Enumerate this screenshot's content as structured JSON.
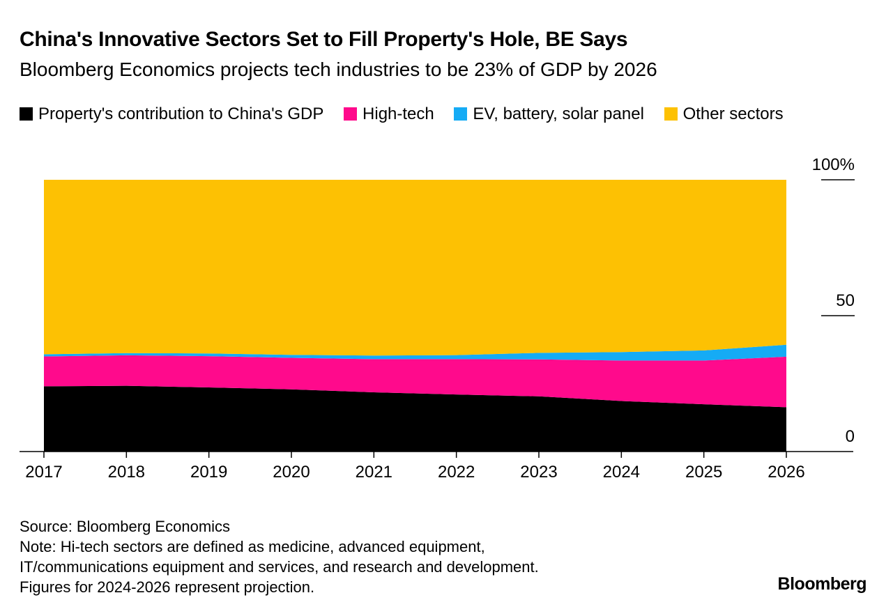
{
  "title": "China's Innovative Sectors Set to Fill Property's Hole, BE Says",
  "subtitle": "Bloomberg Economics projects tech industries to be 23% of GDP by 2026",
  "source": "Source: Bloomberg Economics",
  "notes": [
    "Note: Hi-tech sectors are defined as medicine, advanced equipment,",
    "IT/communications equipment and services, and research and development.",
    "Figures for 2024-2026 represent projection."
  ],
  "brand": "Bloomberg",
  "chart_data": {
    "type": "area",
    "stacked": true,
    "x": [
      2017,
      2018,
      2019,
      2020,
      2021,
      2022,
      2023,
      2024,
      2025,
      2026
    ],
    "x_tick_labels": [
      "2017",
      "2018",
      "2019",
      "2020",
      "2021",
      "2022",
      "2023",
      "2024",
      "2025",
      "2026"
    ],
    "y_ticks": [
      0,
      50,
      100
    ],
    "y_tick_labels": [
      "0",
      "50",
      "100%"
    ],
    "ylim": [
      0,
      100
    ],
    "y_axis_position": "right",
    "grid": false,
    "legend_position": "top-left",
    "series": [
      {
        "name": "Property's contribution to China's GDP",
        "color": "#000000",
        "values": [
          24.0,
          24.2,
          23.6,
          22.9,
          21.8,
          21.0,
          20.3,
          18.6,
          17.4,
          16.3
        ]
      },
      {
        "name": "High-tech",
        "color": "#ff0a8c",
        "values": [
          11.0,
          11.2,
          11.5,
          11.6,
          12.2,
          13.0,
          13.6,
          14.9,
          16.1,
          18.6
        ]
      },
      {
        "name": "EV, battery, solar panel",
        "color": "#15abf5",
        "values": [
          0.8,
          0.8,
          1.0,
          1.1,
          1.3,
          1.5,
          2.4,
          3.1,
          3.7,
          4.4
        ]
      },
      {
        "name": "Other sectors",
        "color": "#fdc103",
        "values": [
          64.2,
          63.8,
          63.9,
          64.4,
          64.7,
          64.5,
          63.7,
          63.4,
          62.8,
          60.7
        ]
      }
    ]
  }
}
